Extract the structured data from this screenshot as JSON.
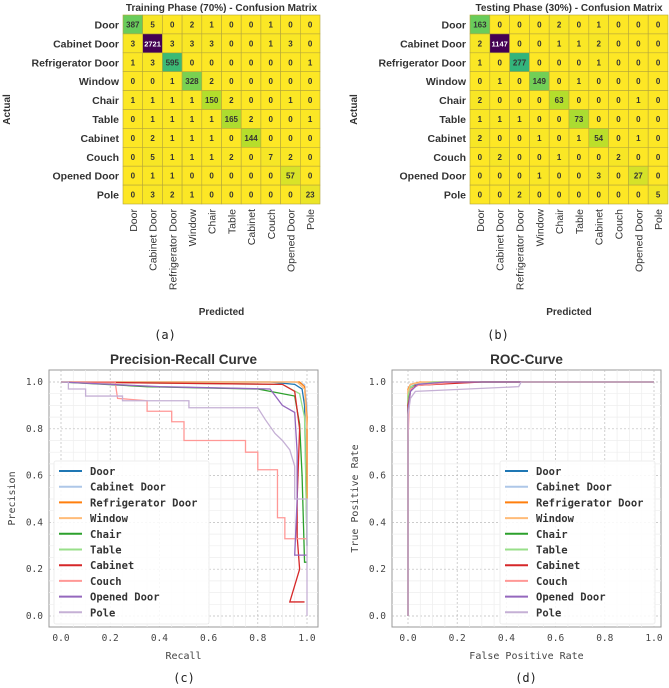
{
  "chart_data": [
    {
      "type": "heatmap",
      "title": "Training Phase (70%) - Confusion Matrix",
      "xlabel": "Predicted",
      "ylabel": "Actual",
      "caption": "(a)",
      "labels": [
        "Door",
        "Cabinet Door",
        "Refrigerator Door",
        "Window",
        "Chair",
        "Table",
        "Cabinet",
        "Couch",
        "Opened Door",
        "Pole"
      ],
      "matrix": [
        [
          387,
          5,
          0,
          2,
          1,
          0,
          0,
          1,
          0,
          0
        ],
        [
          3,
          2721,
          3,
          3,
          3,
          0,
          0,
          1,
          3,
          0
        ],
        [
          1,
          3,
          595,
          0,
          0,
          0,
          0,
          0,
          0,
          1
        ],
        [
          0,
          0,
          1,
          328,
          2,
          0,
          0,
          0,
          0,
          0
        ],
        [
          1,
          1,
          1,
          1,
          150,
          2,
          0,
          0,
          1,
          0
        ],
        [
          0,
          1,
          1,
          1,
          1,
          165,
          2,
          0,
          0,
          1
        ],
        [
          0,
          2,
          1,
          1,
          1,
          0,
          144,
          0,
          0,
          0
        ],
        [
          0,
          5,
          1,
          1,
          1,
          2,
          0,
          7,
          2,
          0
        ],
        [
          0,
          1,
          1,
          0,
          0,
          0,
          0,
          0,
          57,
          0
        ],
        [
          0,
          3,
          2,
          1,
          0,
          0,
          0,
          0,
          0,
          23
        ]
      ]
    },
    {
      "type": "heatmap",
      "title": "Testing Phase (30%) - Confusion Matrix",
      "xlabel": "Predicted",
      "ylabel": "Actual",
      "caption": "(b)",
      "labels": [
        "Door",
        "Cabinet Door",
        "Refrigerator Door",
        "Window",
        "Chair",
        "Table",
        "Cabinet",
        "Couch",
        "Opened Door",
        "Pole"
      ],
      "matrix": [
        [
          163,
          0,
          0,
          0,
          2,
          0,
          1,
          0,
          0,
          0
        ],
        [
          2,
          1147,
          0,
          0,
          1,
          1,
          2,
          0,
          0,
          0
        ],
        [
          1,
          0,
          277,
          0,
          0,
          0,
          1,
          0,
          0,
          0
        ],
        [
          0,
          1,
          0,
          149,
          0,
          1,
          0,
          0,
          0,
          0
        ],
        [
          2,
          0,
          0,
          0,
          63,
          0,
          0,
          0,
          1,
          0
        ],
        [
          1,
          1,
          1,
          0,
          0,
          73,
          0,
          0,
          0,
          0
        ],
        [
          2,
          0,
          0,
          1,
          0,
          1,
          54,
          0,
          1,
          0
        ],
        [
          0,
          2,
          0,
          0,
          1,
          0,
          0,
          2,
          0,
          0
        ],
        [
          0,
          0,
          0,
          1,
          0,
          0,
          3,
          0,
          27,
          0
        ],
        [
          0,
          0,
          2,
          0,
          0,
          0,
          0,
          0,
          0,
          5
        ]
      ]
    },
    {
      "type": "line",
      "title": "Precision-Recall Curve",
      "xlabel": "Recall",
      "ylabel": "Precision",
      "caption": "(c)",
      "xlim": [
        0,
        1
      ],
      "ylim": [
        0,
        1
      ],
      "grid": true,
      "legend": "lower-left",
      "xticks": [
        "0.0",
        "0.2",
        "0.4",
        "0.6",
        "0.8",
        "1.0"
      ],
      "yticks": [
        "0.0",
        "0.2",
        "0.4",
        "0.6",
        "0.8",
        "1.0"
      ],
      "series": [
        {
          "name": "Door",
          "color": "#1f77b4",
          "points": [
            [
              0,
              1
            ],
            [
              0.85,
              1
            ],
            [
              0.95,
              0.99
            ],
            [
              0.98,
              0.97
            ],
            [
              0.99,
              0.9
            ],
            [
              1,
              0.3
            ]
          ]
        },
        {
          "name": "Cabinet Door",
          "color": "#aec7e8",
          "points": [
            [
              0,
              1
            ],
            [
              0.95,
              1
            ],
            [
              0.99,
              0.99
            ],
            [
              1,
              0.9
            ],
            [
              1,
              0.3
            ]
          ]
        },
        {
          "name": "Refrigerator Door",
          "color": "#ff7f0e",
          "points": [
            [
              0,
              1
            ],
            [
              0.97,
              1
            ],
            [
              0.99,
              0.98
            ],
            [
              1,
              0.85
            ],
            [
              1,
              0.5
            ]
          ]
        },
        {
          "name": "Window",
          "color": "#ffbb78",
          "points": [
            [
              0,
              1
            ],
            [
              0.96,
              1
            ],
            [
              0.99,
              0.97
            ],
            [
              1,
              0.8
            ]
          ]
        },
        {
          "name": "Chair",
          "color": "#2ca02c",
          "points": [
            [
              0,
              1
            ],
            [
              0.35,
              0.98
            ],
            [
              0.8,
              0.97
            ],
            [
              0.95,
              0.94
            ],
            [
              0.97,
              0.82
            ],
            [
              0.98,
              0.6
            ],
            [
              0.99,
              0.23
            ],
            [
              1,
              0.23
            ]
          ]
        },
        {
          "name": "Table",
          "color": "#98df8a",
          "points": [
            [
              0,
              1
            ],
            [
              0.9,
              0.99
            ],
            [
              0.97,
              0.95
            ],
            [
              0.99,
              0.85
            ],
            [
              1,
              0.3
            ]
          ]
        },
        {
          "name": "Cabinet",
          "color": "#d62728",
          "points": [
            [
              0,
              1
            ],
            [
              0.9,
              0.99
            ],
            [
              0.95,
              0.96
            ],
            [
              0.97,
              0.8
            ],
            [
              0.96,
              0.5
            ],
            [
              0.96,
              0.34
            ],
            [
              0.97,
              0.2
            ],
            [
              0.93,
              0.06
            ],
            [
              0.99,
              0.06
            ]
          ]
        },
        {
          "name": "Couch",
          "color": "#ff9896",
          "points": [
            [
              0,
              1
            ],
            [
              0.22,
              1
            ],
            [
              0.23,
              0.93
            ],
            [
              0.35,
              0.92
            ],
            [
              0.35,
              0.875
            ],
            [
              0.45,
              0.875
            ],
            [
              0.45,
              0.83
            ],
            [
              0.5,
              0.83
            ],
            [
              0.5,
              0.75
            ],
            [
              0.75,
              0.75
            ],
            [
              0.75,
              0.7
            ],
            [
              0.8,
              0.7
            ],
            [
              0.8,
              0.625
            ],
            [
              0.88,
              0.625
            ],
            [
              0.88,
              0.42
            ],
            [
              0.91,
              0.42
            ],
            [
              0.91,
              0.33
            ],
            [
              1,
              0.33
            ]
          ]
        },
        {
          "name": "Opened Door",
          "color": "#9467bd",
          "points": [
            [
              0,
              1
            ],
            [
              0.4,
              0.98
            ],
            [
              0.85,
              0.97
            ],
            [
              0.9,
              0.9
            ],
            [
              0.95,
              0.87
            ],
            [
              0.96,
              0.7
            ],
            [
              0.96,
              0.5
            ],
            [
              0.95,
              0.26
            ],
            [
              1,
              0.26
            ]
          ]
        },
        {
          "name": "Pole",
          "color": "#c5b0d5",
          "points": [
            [
              0,
              1
            ],
            [
              0.03,
              1
            ],
            [
              0.03,
              0.97
            ],
            [
              0.1,
              0.97
            ],
            [
              0.1,
              0.94
            ],
            [
              0.25,
              0.94
            ],
            [
              0.25,
              0.92
            ],
            [
              0.52,
              0.92
            ],
            [
              0.52,
              0.89
            ],
            [
              0.8,
              0.89
            ],
            [
              0.83,
              0.84
            ],
            [
              0.87,
              0.78
            ],
            [
              0.9,
              0.75
            ],
            [
              0.93,
              0.71
            ],
            [
              0.95,
              0.64
            ],
            [
              0.95,
              0.5
            ],
            [
              1,
              0.5
            ],
            [
              1,
              0
            ]
          ]
        }
      ]
    },
    {
      "type": "line",
      "title": "ROC-Curve",
      "xlabel": "False Positive Rate",
      "ylabel": "True Positive Rate",
      "caption": "(d)",
      "xlim": [
        0,
        1
      ],
      "ylim": [
        0,
        1
      ],
      "grid": true,
      "legend": "lower-right",
      "xticks": [
        "0.0",
        "0.2",
        "0.4",
        "0.6",
        "0.8",
        "1.0"
      ],
      "yticks": [
        "0.0",
        "0.2",
        "0.4",
        "0.6",
        "0.8",
        "1.0"
      ],
      "series": [
        {
          "name": "Door",
          "color": "#1f77b4",
          "points": [
            [
              0,
              0
            ],
            [
              0,
              0.93
            ],
            [
              0.01,
              0.98
            ],
            [
              0.05,
              0.995
            ],
            [
              0.2,
              1
            ],
            [
              1,
              1
            ]
          ]
        },
        {
          "name": "Cabinet Door",
          "color": "#aec7e8",
          "points": [
            [
              0,
              0
            ],
            [
              0,
              0.96
            ],
            [
              0.01,
              0.99
            ],
            [
              0.1,
              1
            ],
            [
              1,
              1
            ]
          ]
        },
        {
          "name": "Refrigerator Door",
          "color": "#ff7f0e",
          "points": [
            [
              0,
              0
            ],
            [
              0,
              0.97
            ],
            [
              0.01,
              0.99
            ],
            [
              0.05,
              1
            ],
            [
              1,
              1
            ]
          ]
        },
        {
          "name": "Window",
          "color": "#ffbb78",
          "points": [
            [
              0,
              0
            ],
            [
              0,
              0.96
            ],
            [
              0.01,
              0.99
            ],
            [
              0.06,
              1
            ],
            [
              1,
              1
            ]
          ]
        },
        {
          "name": "Chair",
          "color": "#2ca02c",
          "points": [
            [
              0,
              0
            ],
            [
              0,
              0.92
            ],
            [
              0.01,
              0.97
            ],
            [
              0.03,
              0.985
            ],
            [
              0.15,
              0.995
            ],
            [
              0.3,
              1
            ],
            [
              1,
              1
            ]
          ]
        },
        {
          "name": "Table",
          "color": "#98df8a",
          "points": [
            [
              0,
              0
            ],
            [
              0,
              0.94
            ],
            [
              0.01,
              0.98
            ],
            [
              0.1,
              1
            ],
            [
              1,
              1
            ]
          ]
        },
        {
          "name": "Cabinet",
          "color": "#d62728",
          "points": [
            [
              0,
              0
            ],
            [
              0,
              0.9
            ],
            [
              0.01,
              0.96
            ],
            [
              0.03,
              0.985
            ],
            [
              0.2,
              0.995
            ],
            [
              0.3,
              1
            ],
            [
              1,
              1
            ]
          ]
        },
        {
          "name": "Couch",
          "color": "#ff9896",
          "points": [
            [
              0,
              0
            ],
            [
              0,
              0.75
            ],
            [
              0.005,
              0.9
            ],
            [
              0.01,
              0.97
            ],
            [
              0.04,
              0.985
            ],
            [
              0.2,
              1
            ],
            [
              1,
              1
            ]
          ]
        },
        {
          "name": "Opened Door",
          "color": "#9467bd",
          "points": [
            [
              0,
              0
            ],
            [
              0,
              0.88
            ],
            [
              0.01,
              0.96
            ],
            [
              0.04,
              0.99
            ],
            [
              0.15,
              1
            ],
            [
              1,
              1
            ]
          ]
        },
        {
          "name": "Pole",
          "color": "#c5b0d5",
          "points": [
            [
              0,
              0
            ],
            [
              0,
              0.86
            ],
            [
              0.01,
              0.93
            ],
            [
              0.03,
              0.96
            ],
            [
              0.45,
              0.98
            ],
            [
              0.46,
              1
            ],
            [
              1,
              1
            ]
          ]
        }
      ]
    }
  ]
}
